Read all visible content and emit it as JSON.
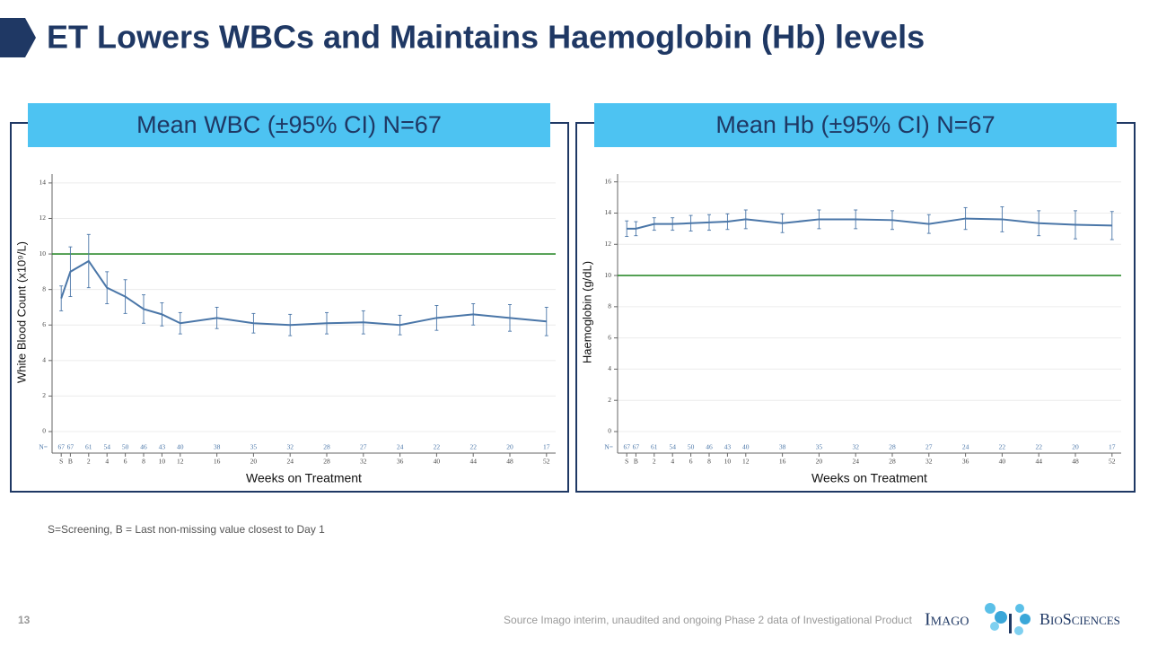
{
  "header": {
    "title": "ET Lowers WBCs and Maintains Haemoglobin (Hb) levels"
  },
  "chart_data": [
    {
      "type": "line",
      "title": "Mean WBC (±95% CI) N=67",
      "ylabel": "White Blood Count (x10⁹/L)",
      "xlabel": "Weeks on Treatment",
      "x": [
        -1,
        0,
        2,
        4,
        6,
        8,
        10,
        12,
        16,
        20,
        24,
        28,
        32,
        36,
        40,
        44,
        48,
        52
      ],
      "xlim": [
        -2,
        53
      ],
      "xticks": [
        {
          "value": -1,
          "label": "S"
        },
        {
          "value": 0,
          "label": "B"
        },
        2,
        4,
        6,
        8,
        10,
        12,
        16,
        20,
        24,
        28,
        32,
        36,
        40,
        44,
        48,
        52
      ],
      "values": [
        7.5,
        9.0,
        9.6,
        8.1,
        7.6,
        6.9,
        6.6,
        6.1,
        6.4,
        6.1,
        6.0,
        6.1,
        6.15,
        6.0,
        6.4,
        6.6,
        6.4,
        6.2
      ],
      "error": [
        0.7,
        1.4,
        1.5,
        0.9,
        0.95,
        0.8,
        0.65,
        0.6,
        0.6,
        0.55,
        0.6,
        0.6,
        0.65,
        0.55,
        0.7,
        0.6,
        0.75,
        0.8
      ],
      "color": "#4a76a8",
      "ylim": [
        0,
        14.5
      ],
      "yticks": [
        0,
        2,
        4,
        6,
        8,
        10,
        12,
        14
      ],
      "grid": true,
      "ref_line": {
        "value": 10,
        "color": "#2e8b2e"
      },
      "n_label": "N=",
      "n_counts": [
        67,
        67,
        61,
        54,
        50,
        46,
        43,
        40,
        38,
        35,
        32,
        28,
        27,
        24,
        22,
        22,
        20,
        17
      ]
    },
    {
      "type": "line",
      "title": "Mean Hb (±95% CI) N=67",
      "ylabel": "Haemoglobin (g/dL)",
      "xlabel": "Weeks on Treatment",
      "x": [
        -1,
        0,
        2,
        4,
        6,
        8,
        10,
        12,
        16,
        20,
        24,
        28,
        32,
        36,
        40,
        44,
        48,
        52
      ],
      "xlim": [
        -2,
        53
      ],
      "xticks": [
        {
          "value": -1,
          "label": "S"
        },
        {
          "value": 0,
          "label": "B"
        },
        2,
        4,
        6,
        8,
        10,
        12,
        16,
        20,
        24,
        28,
        32,
        36,
        40,
        44,
        48,
        52
      ],
      "values": [
        13.0,
        13.0,
        13.3,
        13.3,
        13.35,
        13.4,
        13.45,
        13.6,
        13.35,
        13.6,
        13.6,
        13.55,
        13.3,
        13.65,
        13.6,
        13.35,
        13.25,
        13.2
      ],
      "error": [
        0.5,
        0.45,
        0.4,
        0.4,
        0.5,
        0.5,
        0.5,
        0.6,
        0.6,
        0.6,
        0.6,
        0.6,
        0.6,
        0.7,
        0.8,
        0.8,
        0.9,
        0.9
      ],
      "color": "#4a76a8",
      "ylim": [
        0,
        16.5
      ],
      "yticks": [
        0,
        2,
        4,
        6,
        8,
        10,
        12,
        14,
        16
      ],
      "grid": true,
      "ref_line": {
        "value": 10,
        "color": "#2e8b2e"
      },
      "n_label": "N=",
      "n_counts": [
        67,
        67,
        61,
        54,
        50,
        46,
        43,
        40,
        38,
        35,
        32,
        28,
        27,
        24,
        22,
        22,
        20,
        17
      ]
    }
  ],
  "footnote": "S=Screening, B = Last non-missing value closest to Day 1",
  "source": "Source Imago interim, unaudited and ongoing Phase 2 data of Investigational Product",
  "slide_number": "13",
  "logo": {
    "left": "Imago",
    "right": "BioSciences"
  }
}
